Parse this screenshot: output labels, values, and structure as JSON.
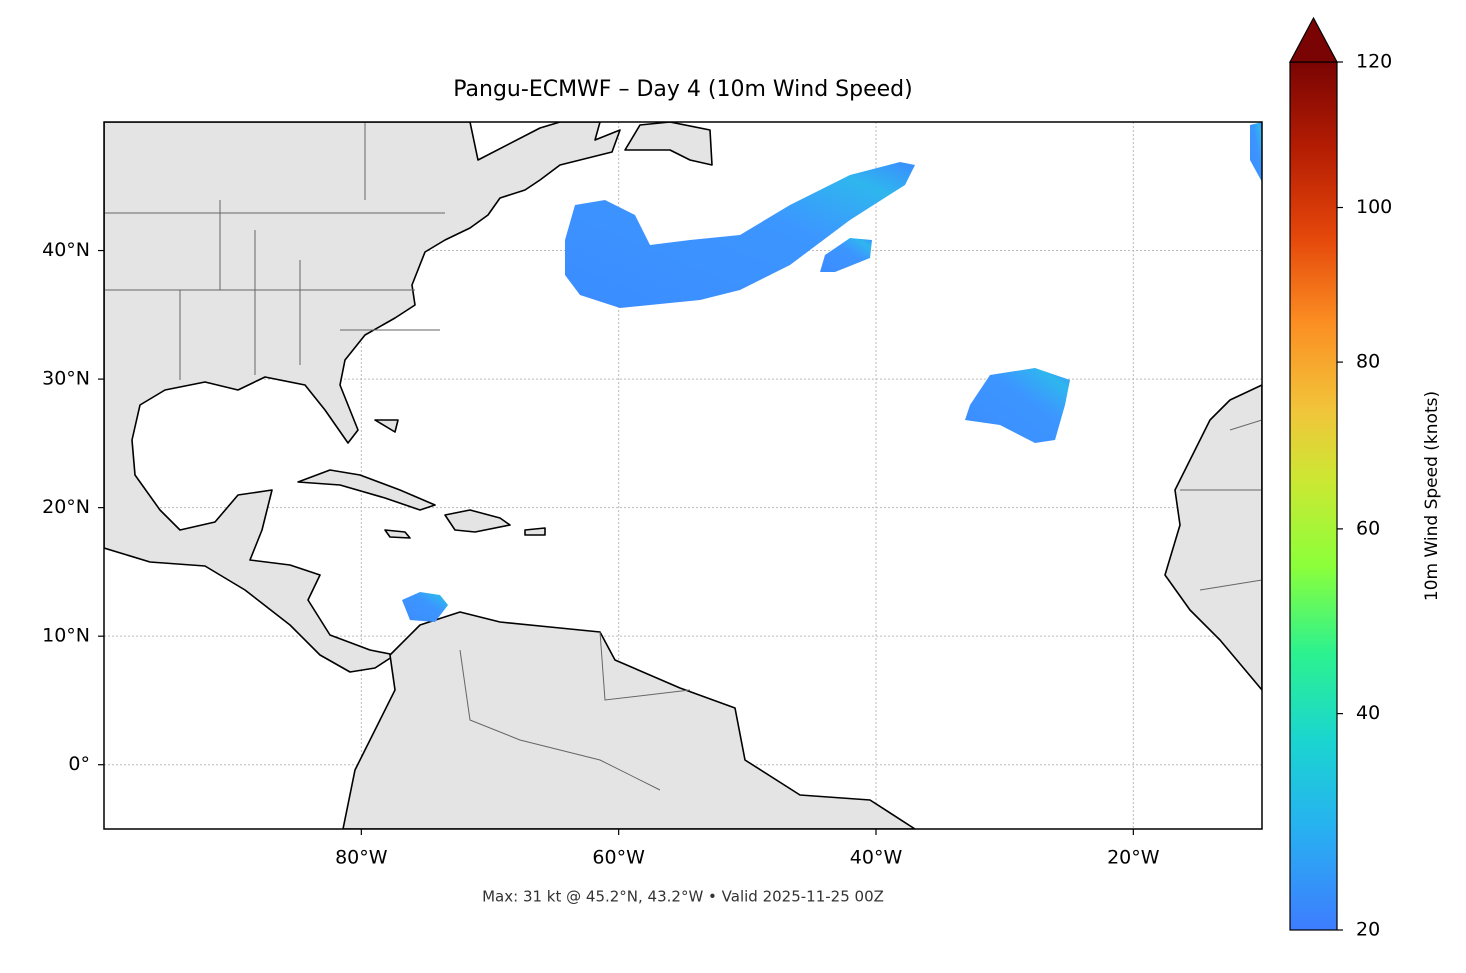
{
  "chart_data": {
    "type": "map",
    "title": "Pangu-ECMWF – Day 4 (10m Wind Speed)",
    "footer": "Max: 31 kt @ 45.2°N, 43.2°W • Valid 2025-11-25 00Z",
    "xlim": [
      -100,
      -10
    ],
    "ylim": [
      -5,
      50
    ],
    "xticks": [
      {
        "value": -80,
        "label": "80°W"
      },
      {
        "value": -60,
        "label": "60°W"
      },
      {
        "value": -40,
        "label": "40°W"
      },
      {
        "value": -20,
        "label": "20°W"
      }
    ],
    "yticks": [
      {
        "value": 0,
        "label": "0°"
      },
      {
        "value": 10,
        "label": "10°N"
      },
      {
        "value": 20,
        "label": "20°N"
      },
      {
        "value": 30,
        "label": "30°N"
      },
      {
        "value": 40,
        "label": "40°N"
      }
    ],
    "grid": true,
    "colorbar": {
      "label": "10m Wind Speed (knots)",
      "lim": [
        20,
        120
      ],
      "ticks": [
        20,
        40,
        60,
        80,
        100,
        120
      ],
      "norm": "power",
      "gamma": 0.7,
      "extend": "max"
    }
  }
}
